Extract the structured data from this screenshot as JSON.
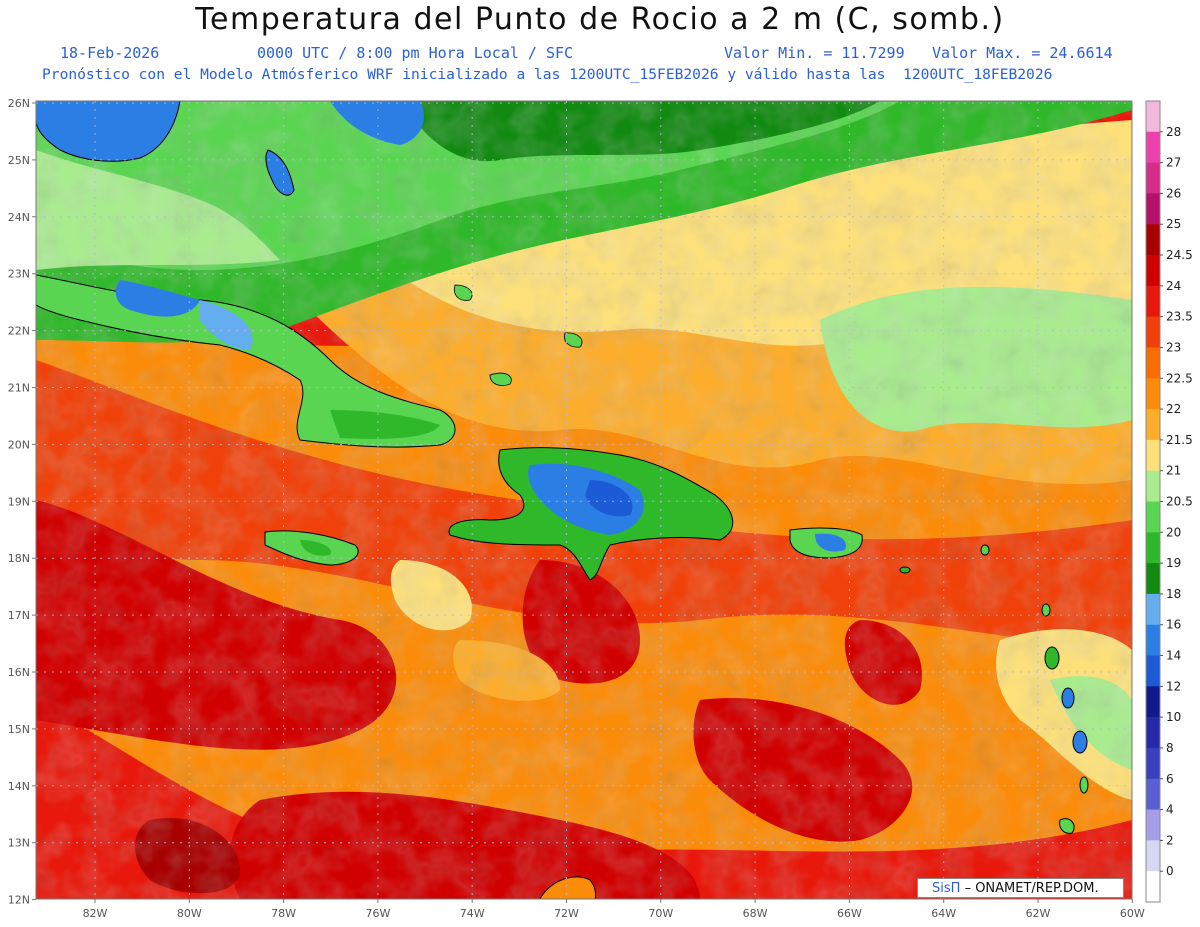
{
  "header": {
    "title": "Temperatura del Punto de Rocio a 2 m (C, somb.)",
    "date": "18-Feb-2026",
    "time": "0000 UTC / 8:00 pm Hora Local / SFC",
    "min": "Valor Min. = 11.7299",
    "max": "Valor Max. = 24.6614",
    "model_line": "Pronóstico con el Modelo Atmósferico WRF inicializado a las 1200UTC_15FEB2026 y válido hasta las  1200UTC_18FEB2026"
  },
  "map": {
    "lat_ticks": [
      "26N",
      "25N",
      "24N",
      "23N",
      "22N",
      "21N",
      "20N",
      "19N",
      "18N",
      "17N",
      "16N",
      "15N",
      "14N",
      "13N",
      "12N"
    ],
    "lon_ticks": [
      "82W",
      "80W",
      "78W",
      "76W",
      "74W",
      "72W",
      "70W",
      "68W",
      "66W",
      "64W",
      "62W",
      "60W"
    ]
  },
  "legend": {
    "levels": [
      "28",
      "27",
      "26",
      "25",
      "24.5",
      "24",
      "23.5",
      "23",
      "22.5",
      "22",
      "21.5",
      "21",
      "20.5",
      "20",
      "19",
      "18",
      "16",
      "14",
      "12",
      "10",
      "8",
      "6",
      "4",
      "2",
      "0"
    ],
    "colors": [
      "#f4b8dc",
      "#ee3fae",
      "#d82b8a",
      "#b5106a",
      "#a80000",
      "#d10000",
      "#e8190c",
      "#f0410a",
      "#fa6d05",
      "#fb8c0a",
      "#fcad2c",
      "#fde07a",
      "#a8ec8e",
      "#5ad552",
      "#2fb829",
      "#128a12",
      "#64aef0",
      "#2b7fe4",
      "#1d5bd6",
      "#12198c",
      "#262aa6",
      "#3a3fbd",
      "#5b5fd4",
      "#a79ce8",
      "#d7d7f4",
      "#ffffff"
    ]
  },
  "credit": {
    "brand": "SisΠ",
    "org": "– ONAMET/REP.DOM."
  }
}
